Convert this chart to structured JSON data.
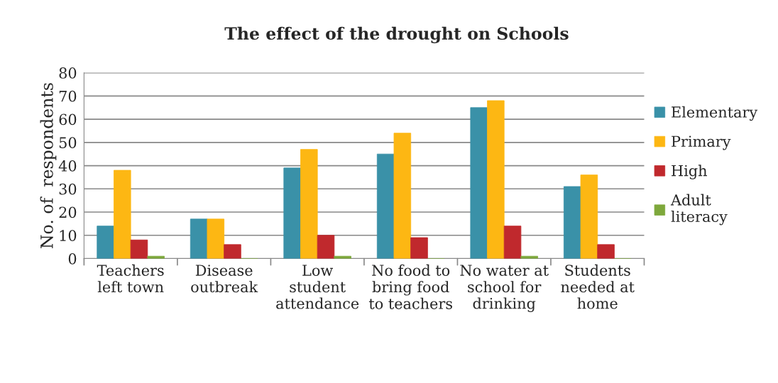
{
  "chart_data": {
    "type": "bar",
    "title": "The effect of the drought on Schools",
    "ylabel": "No. of  respondents",
    "categories": [
      "Teachers\nleft town",
      "Disease\noutbreak",
      "Low\nstudent\nattendance",
      "No food to\nbring food\nto teachers",
      "No water at\nschool for\ndrinking",
      "Students\nneeded at\nhome"
    ],
    "series": [
      {
        "name": "Elementary",
        "color": "#3a91a8",
        "values": [
          14,
          17,
          39,
          45,
          65,
          31
        ]
      },
      {
        "name": "Primary",
        "color": "#fdb713",
        "values": [
          38,
          17,
          47,
          54,
          68,
          36
        ]
      },
      {
        "name": "High",
        "color": "#c0292d",
        "values": [
          8,
          6,
          10,
          9,
          14,
          6
        ]
      },
      {
        "name": "Adult\nliteracy",
        "color": "#7ea83c",
        "values": [
          1,
          0,
          1,
          0,
          1,
          0
        ]
      }
    ],
    "ylim": [
      0,
      80
    ],
    "yticks": [
      0,
      10,
      20,
      30,
      40,
      50,
      60,
      70,
      80
    ],
    "grid": "y",
    "legend": "right"
  }
}
